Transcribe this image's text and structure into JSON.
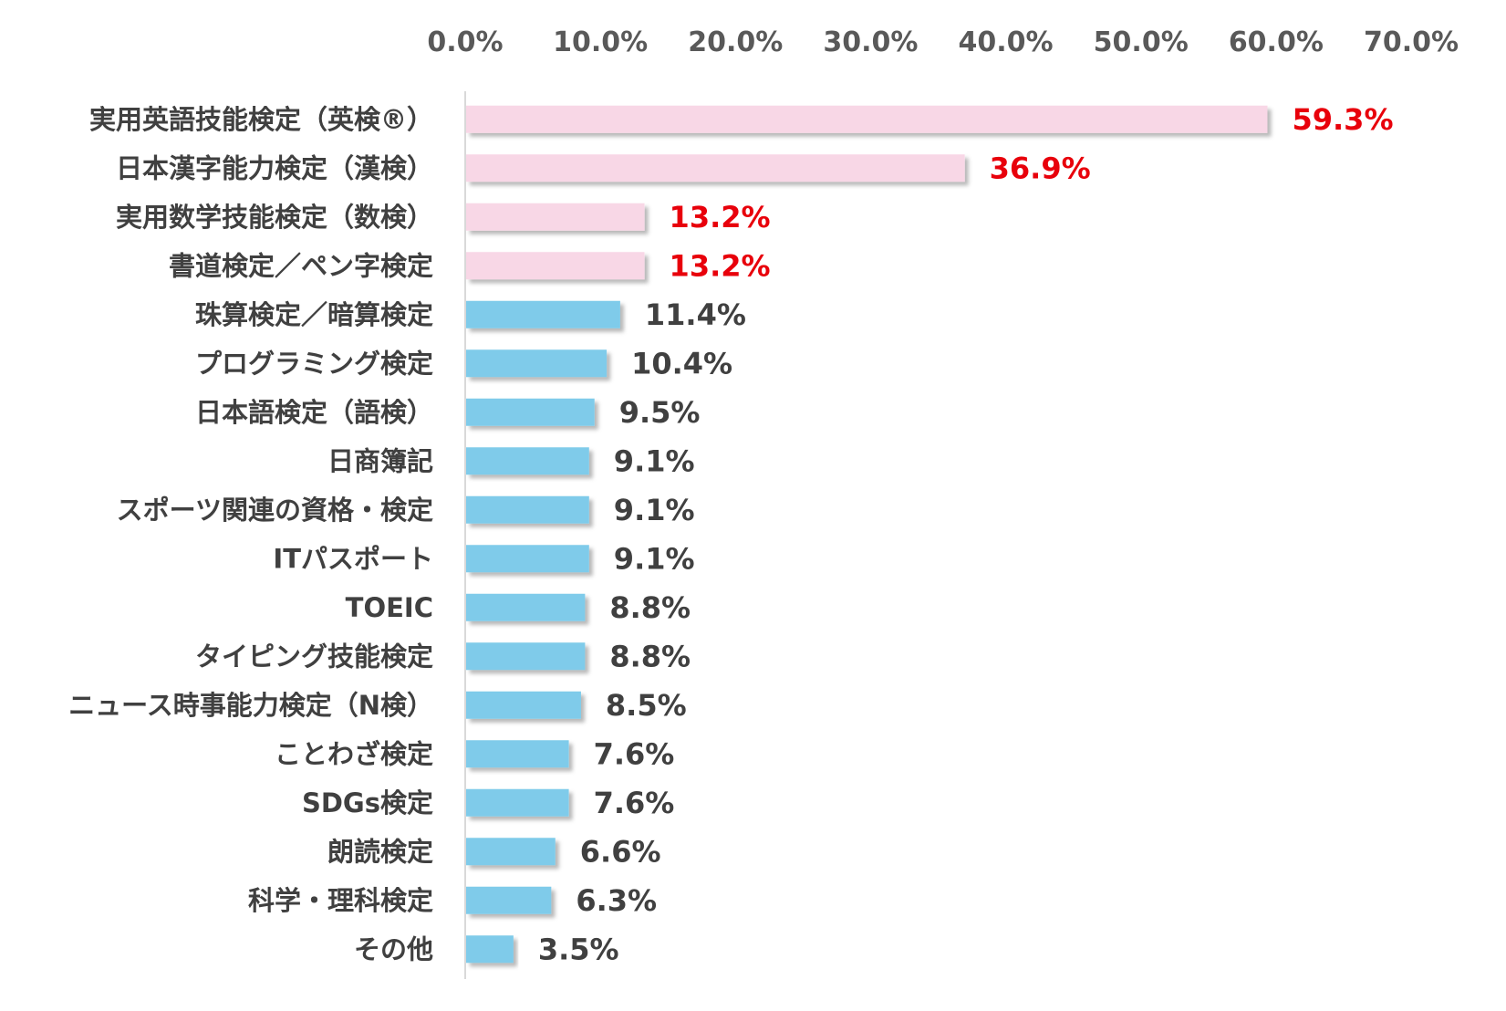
{
  "chart_data": {
    "type": "bar",
    "orientation": "horizontal",
    "title": "",
    "xlabel": "",
    "ylabel": "",
    "xlim": [
      0,
      70
    ],
    "x_ticks": [
      "0.0%",
      "10.0%",
      "20.0%",
      "30.0%",
      "40.0%",
      "50.0%",
      "60.0%",
      "70.0%"
    ],
    "x_axis_position": "top",
    "grid": false,
    "legend": "none",
    "highlight_color": "#F8D7E6",
    "highlight_label_color": "#E8000B",
    "base_color": "#7FCBEA",
    "base_label_color": "#404040",
    "categories": [
      "実用英語技能検定（英検®）",
      "日本漢字能力検定（漢検）",
      "実用数学技能検定（数検）",
      "書道検定／ペン字検定",
      "珠算検定／暗算検定",
      "プログラミング検定",
      "日本語検定（語検）",
      "日商簿記",
      "スポーツ関連の資格・検定",
      "ITパスポート",
      "TOEIC",
      "タイピング技能検定",
      "ニュース時事能力検定（N検）",
      "ことわざ検定",
      "SDGs検定",
      "朗読検定",
      "科学・理科検定",
      "その他"
    ],
    "values": [
      59.3,
      36.9,
      13.2,
      13.2,
      11.4,
      10.4,
      9.5,
      9.1,
      9.1,
      9.1,
      8.8,
      8.8,
      8.5,
      7.6,
      7.6,
      6.6,
      6.3,
      3.5
    ],
    "value_labels": [
      "59.3%",
      "36.9%",
      "13.2%",
      "13.2%",
      "11.4%",
      "10.4%",
      "9.5%",
      "9.1%",
      "9.1%",
      "9.1%",
      "8.8%",
      "8.8%",
      "8.5%",
      "7.6%",
      "7.6%",
      "6.6%",
      "6.3%",
      "3.5%"
    ],
    "highlighted": [
      true,
      true,
      true,
      true,
      false,
      false,
      false,
      false,
      false,
      false,
      false,
      false,
      false,
      false,
      false,
      false,
      false,
      false
    ]
  }
}
